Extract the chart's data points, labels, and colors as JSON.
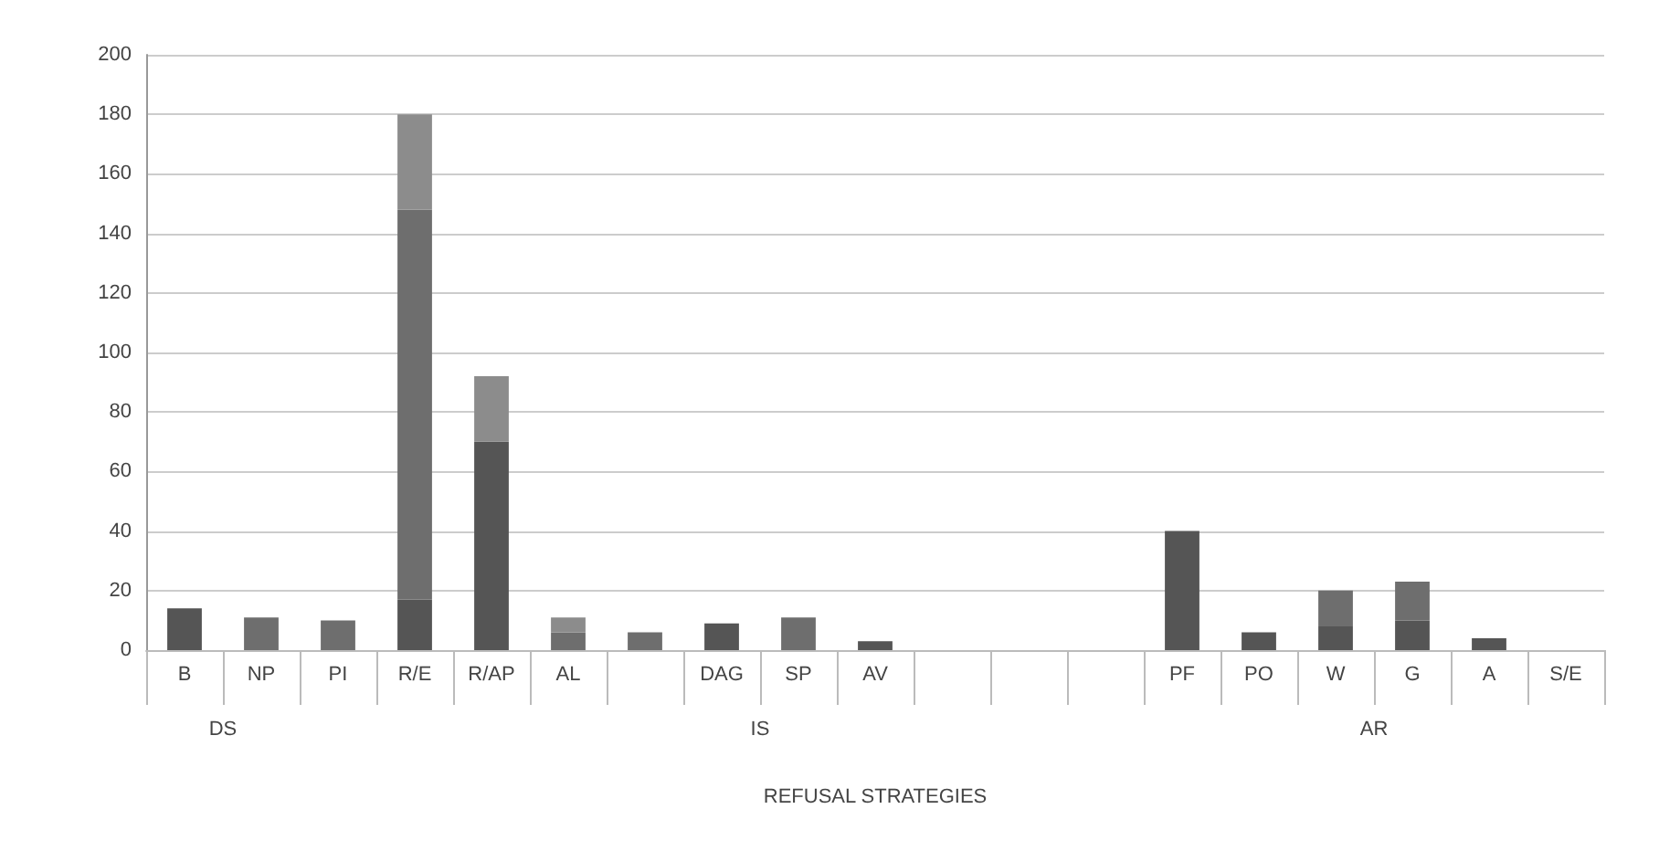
{
  "chart_data": {
    "type": "bar",
    "stacked": true,
    "xlabel": "REFUSAL STRATEGIES",
    "categories": [
      "B",
      "NP",
      "PI",
      "R/E",
      "R/AP",
      "AL",
      null,
      "DAG",
      "SP",
      "AV",
      null,
      null,
      null,
      "PF",
      "PO",
      "W",
      "G",
      "A",
      "S/E"
    ],
    "series": [
      {
        "color": "#555555",
        "values": [
          14,
          0,
          0,
          17,
          70,
          0,
          0,
          9,
          0,
          3,
          null,
          null,
          null,
          40,
          6,
          8,
          10,
          4,
          0
        ]
      },
      {
        "color": "#6e6e6e",
        "values": [
          0,
          11,
          10,
          131,
          0,
          6,
          6,
          0,
          11,
          0,
          null,
          null,
          null,
          0,
          0,
          12,
          13,
          0,
          0
        ]
      },
      {
        "color": "#8c8c8c",
        "values": [
          0,
          0,
          0,
          32,
          22,
          5,
          0,
          0,
          0,
          0,
          null,
          null,
          null,
          0,
          0,
          0,
          0,
          0,
          0
        ]
      }
    ],
    "annotations": [
      "DS",
      "IS",
      "AR"
    ],
    "ylim": [
      0,
      200
    ],
    "yticks": [
      0,
      20,
      40,
      60,
      80,
      100,
      120,
      140,
      160,
      180,
      200
    ],
    "grid": "y"
  }
}
